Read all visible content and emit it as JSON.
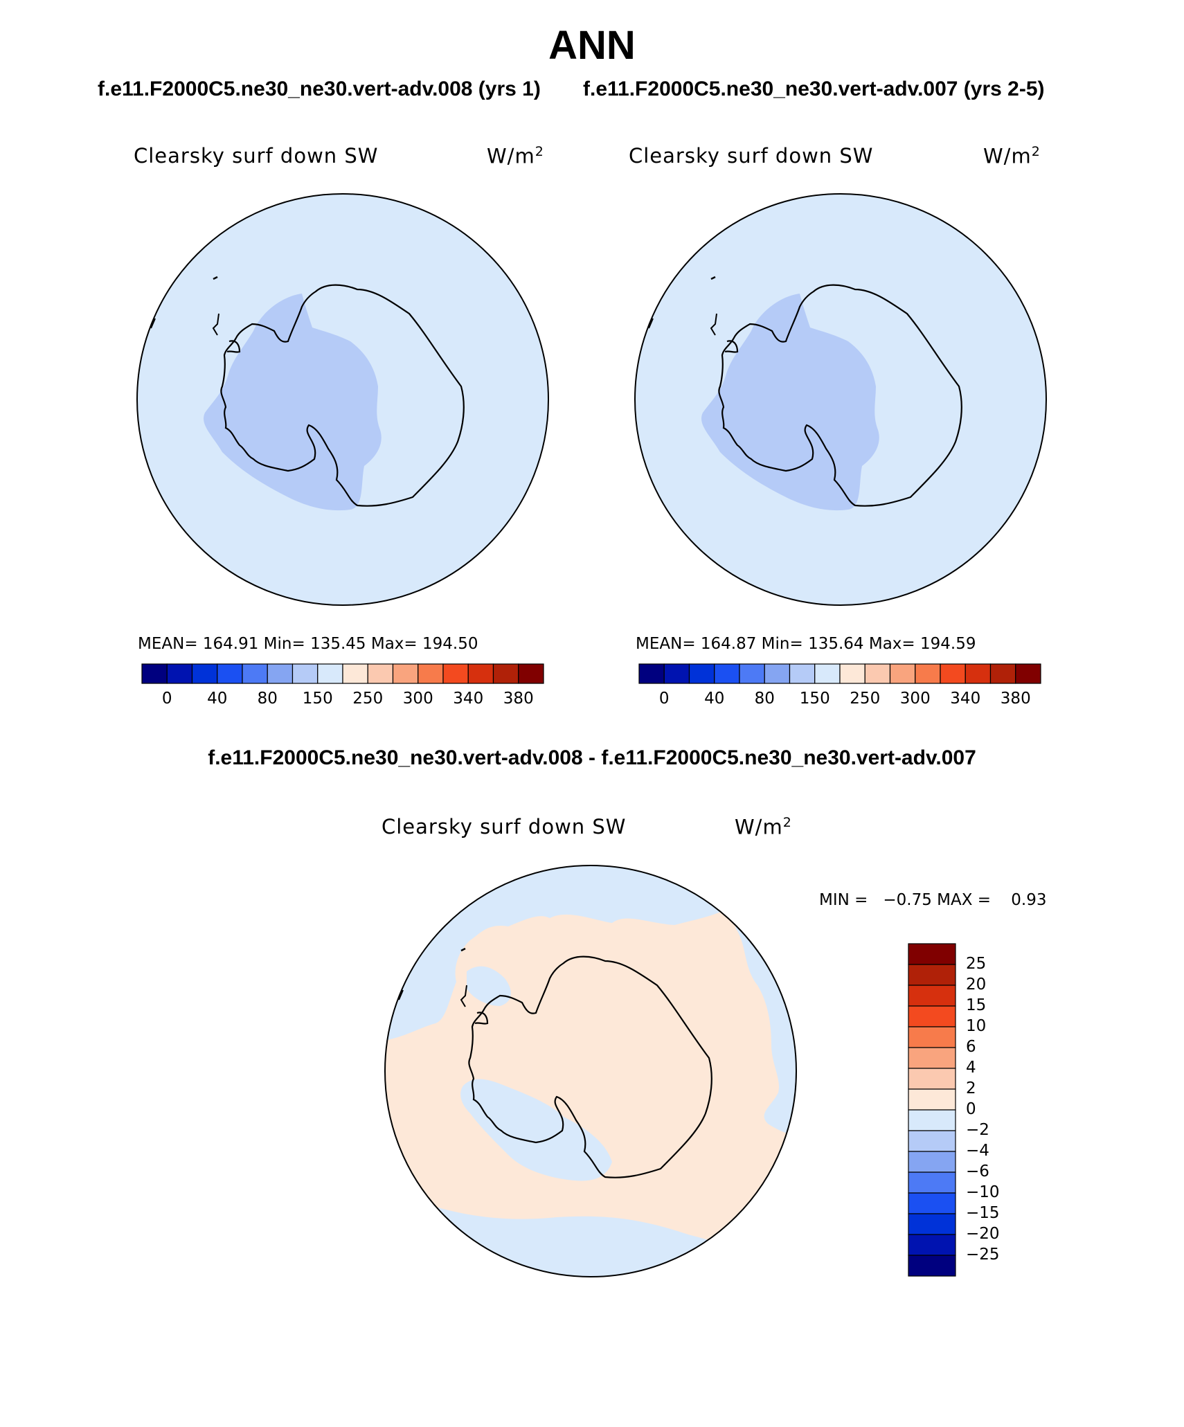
{
  "page": {
    "title": "ANN",
    "case1_title": "f.e11.F2000C5.ne30_ne30.vert-adv.008 (yrs 1)",
    "case2_title": "f.e11.F2000C5.ne30_ne30.vert-adv.007 (yrs 2-5)",
    "diff_title": "f.e11.F2000C5.ne30_ne30.vert-adv.008 - f.e11.F2000C5.ne30_ne30.vert-adv.007"
  },
  "panels": [
    {
      "variable": "Clearsky surf down SW",
      "units": "W/m",
      "units_exp": "2",
      "stats": "MEAN= 164.91   Min= 135.45   Max= 194.50"
    },
    {
      "variable": "Clearsky surf down SW",
      "units": "W/m",
      "units_exp": "2",
      "stats": "MEAN= 164.87   Min= 135.64   Max= 194.59"
    }
  ],
  "diff_panel": {
    "variable": "Clearsky surf down SW",
    "units": "W/m",
    "units_exp": "2",
    "minmax": "MIN =   −0.75 MAX =    0.93"
  },
  "colorbar_main": {
    "colors": [
      "#00007f",
      "#0013b0",
      "#0032d8",
      "#1b50f2",
      "#4d7af5",
      "#85a5f2",
      "#b5cbf7",
      "#d8e9fb",
      "#fde8d8",
      "#fbc9b0",
      "#f9a47e",
      "#f77b4b",
      "#f34a1f",
      "#d6300e",
      "#b02108",
      "#800000"
    ],
    "labels": [
      "0",
      "40",
      "80",
      "150",
      "250",
      "300",
      "340",
      "380"
    ]
  },
  "colorbar_diff": {
    "colors": [
      "#800000",
      "#b02108",
      "#d6300e",
      "#f34a1f",
      "#f77b4b",
      "#f9a47e",
      "#fbc9b0",
      "#fde8d8",
      "#d8e9fb",
      "#b5cbf7",
      "#85a5f2",
      "#4d7af5",
      "#1b50f2",
      "#0032d8",
      "#0013b0",
      "#00007f"
    ],
    "labels": [
      "25",
      "20",
      "15",
      "10",
      "6",
      "4",
      "2",
      "0",
      "−2",
      "−4",
      "−6",
      "−10",
      "−15",
      "−20",
      "−25"
    ]
  },
  "colors": {
    "ocean_main": "#d8e9fb",
    "interior_low": "#b5cbf7",
    "diff_neg": "#d8e9fb",
    "diff_pos": "#fde8d8",
    "coast": "#000000"
  }
}
